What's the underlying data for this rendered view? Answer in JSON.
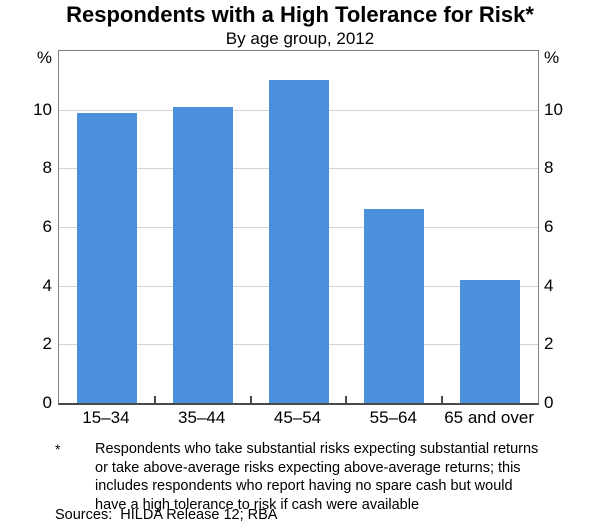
{
  "title": "Respondents with a High Tolerance for Risk*",
  "subtitle": "By age group, 2012",
  "chart_data": {
    "type": "bar",
    "title": "Respondents with a High Tolerance for Risk*",
    "subtitle": "By age group, 2012",
    "categories": [
      "15–34",
      "35–44",
      "45–54",
      "55–64",
      "65 and over"
    ],
    "values": [
      9.9,
      10.1,
      11.0,
      6.6,
      4.2
    ],
    "unit": "%",
    "ylabel_left": "%",
    "ylabel_right": "%",
    "ylim": [
      0,
      12
    ],
    "yticks": [
      0,
      2,
      4,
      6,
      8,
      10
    ],
    "grid": true,
    "legend": "none",
    "bar_color": "#4a90db"
  },
  "footnote": {
    "marker": "*",
    "text": "Respondents who take substantial risks expecting substantial returns or take above-average risks expecting above-average returns; this includes respondents who report having no spare cash but would have a high tolerance to risk if cash were available",
    "lines": [
      "Respondents who take substantial risks expecting substantial returns",
      "or take above-average risks expecting above-average returns; this",
      "includes respondents who report having no spare cash but would",
      "have a high tolerance to risk if cash were available"
    ]
  },
  "sources": "Sources:  HILDA Release 12; RBA",
  "colors": {
    "bar": "#4a90db",
    "gridline": "#d3d3d3",
    "frame": "#7f7f7f",
    "axis": "#4a4a4a",
    "text": "#000000"
  }
}
